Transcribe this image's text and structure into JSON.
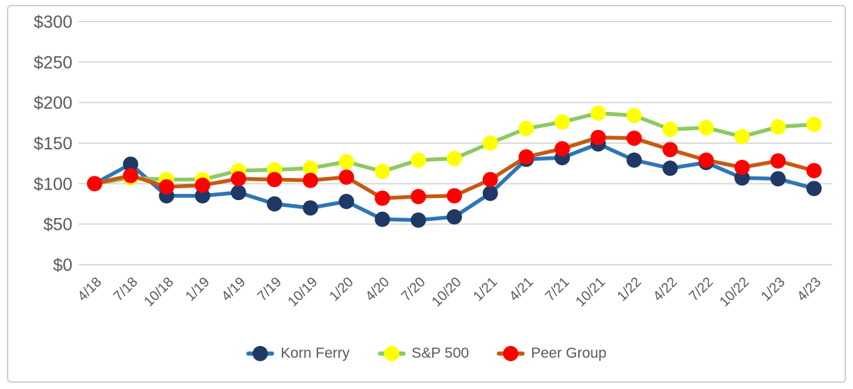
{
  "chart_data": {
    "type": "line",
    "title": "",
    "xlabel": "",
    "ylabel": "",
    "categories": [
      "4/18",
      "7/18",
      "10/18",
      "1/19",
      "4/19",
      "7/19",
      "10/19",
      "1/20",
      "4/20",
      "7/20",
      "10/20",
      "1/21",
      "4/21",
      "7/21",
      "10/21",
      "1/22",
      "4/22",
      "7/22",
      "10/22",
      "1/23",
      "4/23"
    ],
    "series": [
      {
        "name": "Korn Ferry",
        "line_color": "#2E75B6",
        "marker_color": "#1F3864",
        "values": [
          100,
          124,
          85,
          85,
          89,
          75,
          70,
          78,
          56,
          55,
          59,
          88,
          130,
          132,
          149,
          129,
          119,
          126,
          107,
          106,
          94
        ]
      },
      {
        "name": "S&P 500",
        "line_color": "#8DC963",
        "marker_color": "#FFFF00",
        "values": [
          100,
          107,
          105,
          105,
          116,
          117,
          119,
          127,
          115,
          129,
          131,
          150,
          168,
          176,
          187,
          184,
          167,
          169,
          158,
          170,
          173
        ]
      },
      {
        "name": "Peer Group",
        "line_color": "#C55A11",
        "marker_color": "#FF0000",
        "values": [
          100,
          110,
          96,
          98,
          106,
          105,
          104,
          108,
          82,
          84,
          85,
          105,
          133,
          143,
          157,
          156,
          142,
          129,
          120,
          128,
          116
        ]
      }
    ],
    "ylim": [
      0,
      300
    ],
    "yticks": [
      0,
      50,
      100,
      150,
      200,
      250,
      300
    ],
    "ytick_labels": [
      "$0",
      "$50",
      "$100",
      "$150",
      "$200",
      "$250",
      "$300"
    ],
    "grid": true,
    "gridline_color": "#D9D9D9",
    "axis_text_color": "#595959",
    "legend_position": "bottom"
  }
}
